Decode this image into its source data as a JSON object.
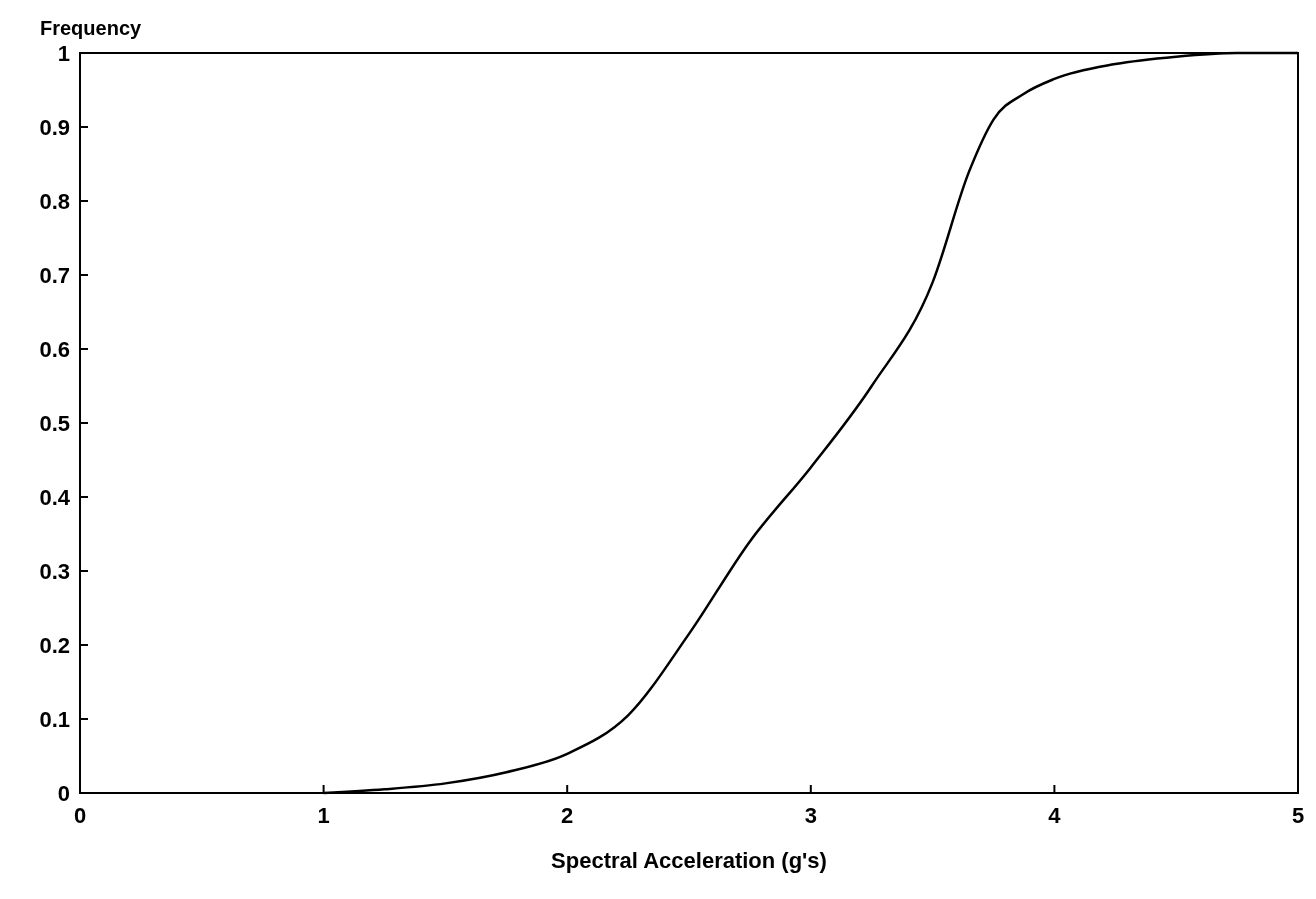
{
  "chart_data": {
    "type": "line",
    "xlabel": "Spectral Acceleration (g's)",
    "ylabel": "Frequency",
    "x": [
      1,
      1.25,
      1.5,
      1.75,
      2,
      2.25,
      2.5,
      2.75,
      3,
      3.25,
      3.5,
      3.65,
      3.75,
      3.875,
      4,
      4.25,
      4.5,
      4.75,
      5
    ],
    "series": [
      {
        "color": "#000000",
        "values": [
          0,
          0.005,
          0.013,
          0.028,
          0.053,
          0.105,
          0.215,
          0.34,
          0.44,
          0.55,
          0.69,
          0.84,
          0.91,
          0.945,
          0.965,
          0.985,
          0.995,
          1,
          1
        ]
      }
    ],
    "xlim": [
      0,
      5
    ],
    "ylim": [
      0,
      1
    ],
    "xticks": [
      0,
      1,
      2,
      3,
      4,
      5
    ],
    "yticks": [
      0,
      0.1,
      0.2,
      0.3,
      0.4,
      0.5,
      0.6,
      0.7,
      0.8,
      0.9,
      1
    ],
    "grid": false
  }
}
